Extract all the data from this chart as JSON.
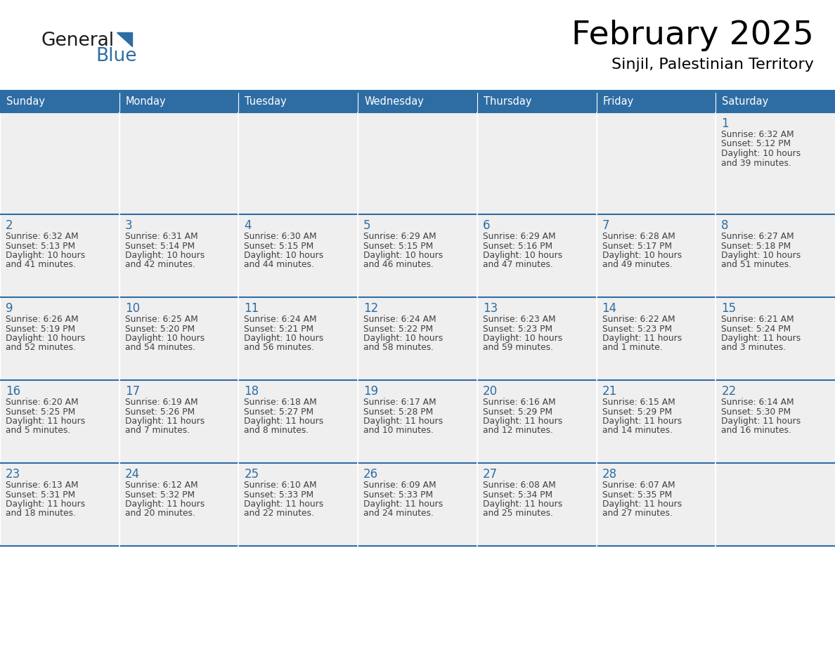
{
  "title": "February 2025",
  "subtitle": "Sinjil, Palestinian Territory",
  "header_bg_color": "#2E6DA4",
  "header_text_color": "#FFFFFF",
  "cell_bg_color": "#EFEFEF",
  "cell_border_color": "#2E6DA4",
  "day_number_color": "#2E6DA4",
  "text_color": "#404040",
  "days_of_week": [
    "Sunday",
    "Monday",
    "Tuesday",
    "Wednesday",
    "Thursday",
    "Friday",
    "Saturday"
  ],
  "calendar_data": [
    [
      null,
      null,
      null,
      null,
      null,
      null,
      {
        "day": "1",
        "sunrise": "6:32 AM",
        "sunset": "5:12 PM",
        "daylight": "10 hours",
        "daylight2": "and 39 minutes."
      }
    ],
    [
      {
        "day": "2",
        "sunrise": "6:32 AM",
        "sunset": "5:13 PM",
        "daylight": "10 hours",
        "daylight2": "and 41 minutes."
      },
      {
        "day": "3",
        "sunrise": "6:31 AM",
        "sunset": "5:14 PM",
        "daylight": "10 hours",
        "daylight2": "and 42 minutes."
      },
      {
        "day": "4",
        "sunrise": "6:30 AM",
        "sunset": "5:15 PM",
        "daylight": "10 hours",
        "daylight2": "and 44 minutes."
      },
      {
        "day": "5",
        "sunrise": "6:29 AM",
        "sunset": "5:15 PM",
        "daylight": "10 hours",
        "daylight2": "and 46 minutes."
      },
      {
        "day": "6",
        "sunrise": "6:29 AM",
        "sunset": "5:16 PM",
        "daylight": "10 hours",
        "daylight2": "and 47 minutes."
      },
      {
        "day": "7",
        "sunrise": "6:28 AM",
        "sunset": "5:17 PM",
        "daylight": "10 hours",
        "daylight2": "and 49 minutes."
      },
      {
        "day": "8",
        "sunrise": "6:27 AM",
        "sunset": "5:18 PM",
        "daylight": "10 hours",
        "daylight2": "and 51 minutes."
      }
    ],
    [
      {
        "day": "9",
        "sunrise": "6:26 AM",
        "sunset": "5:19 PM",
        "daylight": "10 hours",
        "daylight2": "and 52 minutes."
      },
      {
        "day": "10",
        "sunrise": "6:25 AM",
        "sunset": "5:20 PM",
        "daylight": "10 hours",
        "daylight2": "and 54 minutes."
      },
      {
        "day": "11",
        "sunrise": "6:24 AM",
        "sunset": "5:21 PM",
        "daylight": "10 hours",
        "daylight2": "and 56 minutes."
      },
      {
        "day": "12",
        "sunrise": "6:24 AM",
        "sunset": "5:22 PM",
        "daylight": "10 hours",
        "daylight2": "and 58 minutes."
      },
      {
        "day": "13",
        "sunrise": "6:23 AM",
        "sunset": "5:23 PM",
        "daylight": "10 hours",
        "daylight2": "and 59 minutes."
      },
      {
        "day": "14",
        "sunrise": "6:22 AM",
        "sunset": "5:23 PM",
        "daylight": "11 hours",
        "daylight2": "and 1 minute."
      },
      {
        "day": "15",
        "sunrise": "6:21 AM",
        "sunset": "5:24 PM",
        "daylight": "11 hours",
        "daylight2": "and 3 minutes."
      }
    ],
    [
      {
        "day": "16",
        "sunrise": "6:20 AM",
        "sunset": "5:25 PM",
        "daylight": "11 hours",
        "daylight2": "and 5 minutes."
      },
      {
        "day": "17",
        "sunrise": "6:19 AM",
        "sunset": "5:26 PM",
        "daylight": "11 hours",
        "daylight2": "and 7 minutes."
      },
      {
        "day": "18",
        "sunrise": "6:18 AM",
        "sunset": "5:27 PM",
        "daylight": "11 hours",
        "daylight2": "and 8 minutes."
      },
      {
        "day": "19",
        "sunrise": "6:17 AM",
        "sunset": "5:28 PM",
        "daylight": "11 hours",
        "daylight2": "and 10 minutes."
      },
      {
        "day": "20",
        "sunrise": "6:16 AM",
        "sunset": "5:29 PM",
        "daylight": "11 hours",
        "daylight2": "and 12 minutes."
      },
      {
        "day": "21",
        "sunrise": "6:15 AM",
        "sunset": "5:29 PM",
        "daylight": "11 hours",
        "daylight2": "and 14 minutes."
      },
      {
        "day": "22",
        "sunrise": "6:14 AM",
        "sunset": "5:30 PM",
        "daylight": "11 hours",
        "daylight2": "and 16 minutes."
      }
    ],
    [
      {
        "day": "23",
        "sunrise": "6:13 AM",
        "sunset": "5:31 PM",
        "daylight": "11 hours",
        "daylight2": "and 18 minutes."
      },
      {
        "day": "24",
        "sunrise": "6:12 AM",
        "sunset": "5:32 PM",
        "daylight": "11 hours",
        "daylight2": "and 20 minutes."
      },
      {
        "day": "25",
        "sunrise": "6:10 AM",
        "sunset": "5:33 PM",
        "daylight": "11 hours",
        "daylight2": "and 22 minutes."
      },
      {
        "day": "26",
        "sunrise": "6:09 AM",
        "sunset": "5:33 PM",
        "daylight": "11 hours",
        "daylight2": "and 24 minutes."
      },
      {
        "day": "27",
        "sunrise": "6:08 AM",
        "sunset": "5:34 PM",
        "daylight": "11 hours",
        "daylight2": "and 25 minutes."
      },
      {
        "day": "28",
        "sunrise": "6:07 AM",
        "sunset": "5:35 PM",
        "daylight": "11 hours",
        "daylight2": "and 27 minutes."
      },
      null
    ]
  ],
  "logo_text1": "General",
  "logo_text2": "Blue",
  "logo_text1_color": "#1a1a1a",
  "logo_text2_color": "#2E6DA4",
  "logo_triangle_color": "#2E6DA4",
  "fig_width": 11.88,
  "fig_height": 9.18,
  "fig_dpi": 100
}
